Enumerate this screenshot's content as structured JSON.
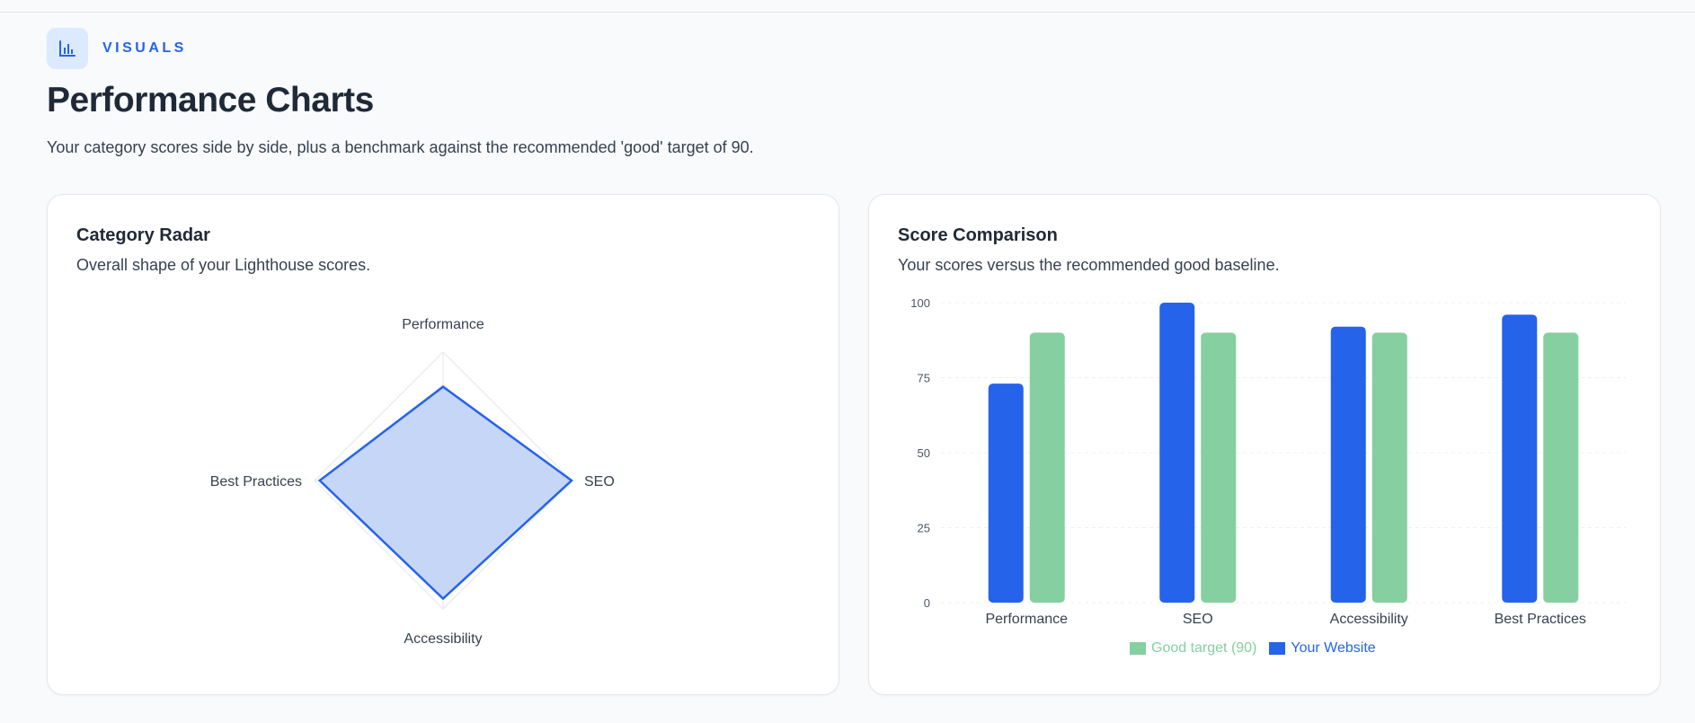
{
  "header": {
    "eyebrow": "VISUALS",
    "eyebrow_icon": "bar-chart-icon",
    "title": "Performance Charts",
    "subtitle": "Your category scores side by side, plus a benchmark against the recommended 'good' target of 90."
  },
  "radar_card": {
    "title": "Category Radar",
    "subtitle": "Overall shape of your Lighthouse scores."
  },
  "bar_card": {
    "title": "Score Comparison",
    "subtitle": "Your scores versus the recommended good baseline."
  },
  "colors": {
    "primary": "#2563eb",
    "good": "#86cfa0",
    "radar_fill": "#c3d4f6"
  },
  "chart_data": [
    {
      "type": "radar",
      "categories": [
        "Performance",
        "SEO",
        "Accessibility",
        "Best Practices"
      ],
      "series": [
        {
          "values": [
            73,
            100,
            92,
            96
          ]
        }
      ],
      "rlim": [
        0,
        100
      ],
      "grid": true
    },
    {
      "type": "bar",
      "categories": [
        "Performance",
        "SEO",
        "Accessibility",
        "Best Practices"
      ],
      "series": [
        {
          "name": "Your Website",
          "values": [
            73,
            100,
            92,
            96
          ]
        },
        {
          "name": "Good target (90)",
          "values": [
            90,
            90,
            90,
            90
          ]
        }
      ],
      "ylim": [
        0,
        100
      ],
      "yticks": [
        0,
        25,
        50,
        75,
        100
      ],
      "grid": true,
      "legend": "bottom-center"
    }
  ]
}
